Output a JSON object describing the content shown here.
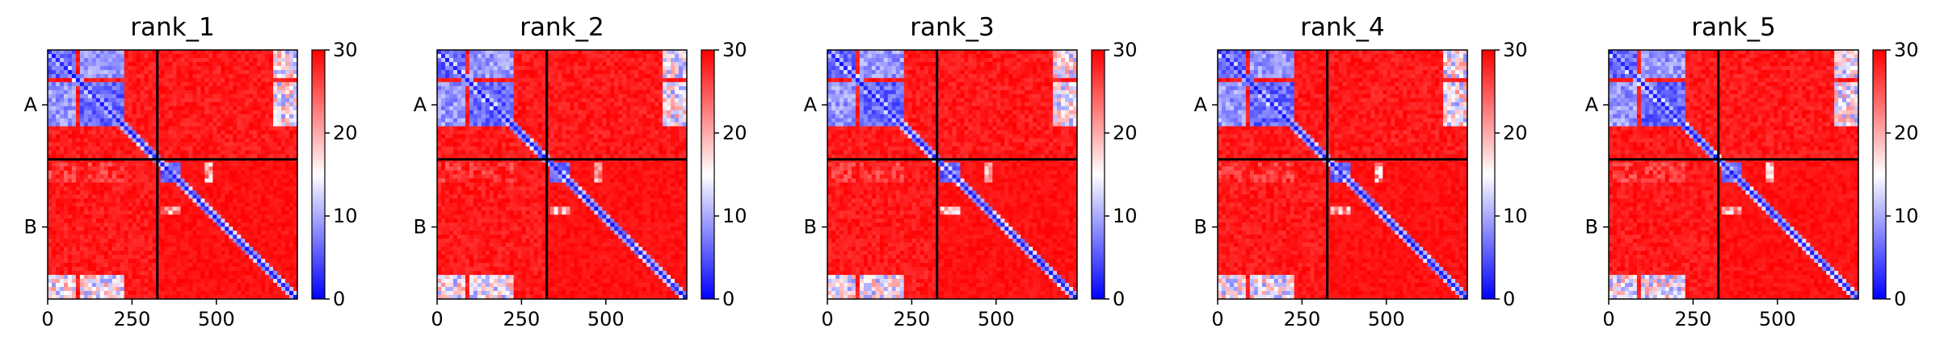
{
  "chart_data": {
    "type": "heatmap",
    "colormap": {
      "name": "bwr",
      "low_color": "#0000ff",
      "mid_color": "#ffffff",
      "high_color": "#ff0000",
      "range": [
        0,
        30
      ]
    },
    "colorbar_ticks": [
      "0",
      "10",
      "20",
      "30"
    ],
    "x_ticks": [
      {
        "value": 0,
        "label": "0"
      },
      {
        "value": 250,
        "label": "250"
      },
      {
        "value": 500,
        "label": "500"
      }
    ],
    "y_ticks": [
      {
        "value": 163,
        "label": "A"
      },
      {
        "value": 526,
        "label": "B"
      }
    ],
    "chain_boundary": 325,
    "axis_extent": [
      0,
      740
    ],
    "panels": [
      {
        "title": "rank_1"
      },
      {
        "title": "rank_2"
      },
      {
        "title": "rank_3"
      },
      {
        "title": "rank_4"
      },
      {
        "title": "rank_5"
      }
    ]
  }
}
